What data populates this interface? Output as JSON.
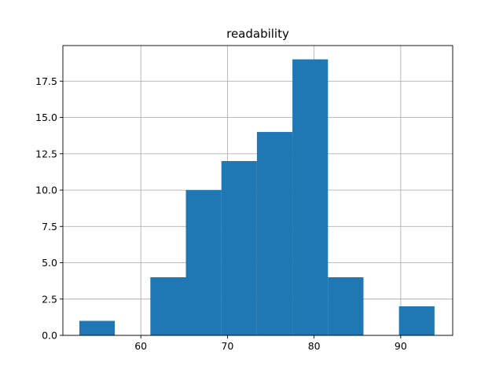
{
  "chart_data": {
    "type": "bar",
    "title": "readability",
    "xlabel": "",
    "ylabel": "",
    "bins": [
      {
        "x0": 52.9,
        "x1": 57.0,
        "count": 1
      },
      {
        "x0": 57.0,
        "x1": 61.1,
        "count": 0
      },
      {
        "x0": 61.1,
        "x1": 65.2,
        "count": 4
      },
      {
        "x0": 65.2,
        "x1": 69.3,
        "count": 10
      },
      {
        "x0": 69.3,
        "x1": 73.4,
        "count": 12
      },
      {
        "x0": 73.4,
        "x1": 77.5,
        "count": 14
      },
      {
        "x0": 77.5,
        "x1": 81.6,
        "count": 19
      },
      {
        "x0": 81.6,
        "x1": 85.7,
        "count": 4
      },
      {
        "x0": 85.7,
        "x1": 89.8,
        "count": 0
      },
      {
        "x0": 89.8,
        "x1": 93.9,
        "count": 2
      }
    ],
    "xlim": [
      51.0,
      96.0
    ],
    "ylim": [
      0,
      19.95
    ],
    "xticks": [
      60,
      70,
      80,
      90
    ],
    "xtick_labels": [
      "60",
      "70",
      "80",
      "90"
    ],
    "yticks": [
      0.0,
      2.5,
      5.0,
      7.5,
      10.0,
      12.5,
      15.0,
      17.5
    ],
    "ytick_labels": [
      "0.0",
      "2.5",
      "5.0",
      "7.5",
      "10.0",
      "12.5",
      "15.0",
      "17.5"
    ],
    "grid": true,
    "colors": {
      "bar": "#1f77b4",
      "grid": "#b0b0b0",
      "axis": "#000000"
    }
  }
}
